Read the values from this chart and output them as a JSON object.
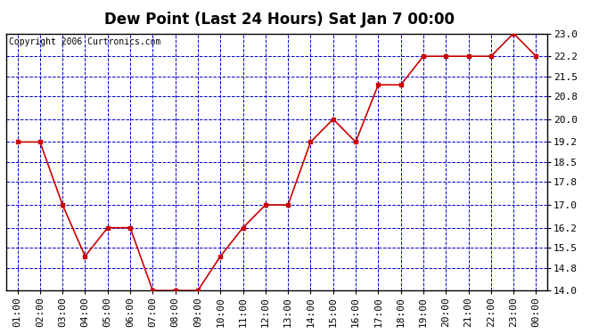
{
  "title": "Dew Point (Last 24 Hours) Sat Jan 7 00:00",
  "copyright": "Copyright 2006 Curtronics.com",
  "x_labels": [
    "01:00",
    "02:00",
    "03:00",
    "04:00",
    "05:00",
    "06:00",
    "07:00",
    "08:00",
    "09:00",
    "10:00",
    "11:00",
    "12:00",
    "13:00",
    "14:00",
    "15:00",
    "16:00",
    "17:00",
    "18:00",
    "19:00",
    "20:00",
    "21:00",
    "22:00",
    "23:00",
    "00:00"
  ],
  "y_values": [
    19.2,
    19.2,
    17.0,
    15.2,
    16.2,
    16.2,
    14.0,
    14.0,
    14.0,
    15.2,
    16.2,
    17.0,
    17.0,
    19.2,
    20.0,
    19.2,
    21.2,
    21.2,
    22.2,
    22.2,
    22.2,
    22.2,
    23.0,
    22.2
  ],
  "ylim_min": 14.0,
  "ylim_max": 23.0,
  "yticks": [
    14.0,
    14.8,
    15.5,
    16.2,
    17.0,
    17.8,
    18.5,
    19.2,
    20.0,
    20.8,
    21.5,
    22.2,
    23.0
  ],
  "ytick_labels": [
    "14.0",
    "14.8",
    "15.5",
    "16.2",
    "17.0",
    "17.8",
    "18.5",
    "19.2",
    "20.0",
    "20.8",
    "21.5",
    "22.2",
    "23.0"
  ],
  "line_color": "#cc0000",
  "marker_color": "#cc0000",
  "plot_bg_color": "#ffffff",
  "outer_bg_color": "#ffffff",
  "grid_color": "#0000cc",
  "title_fontsize": 12,
  "copyright_fontsize": 7,
  "tick_fontsize": 8
}
